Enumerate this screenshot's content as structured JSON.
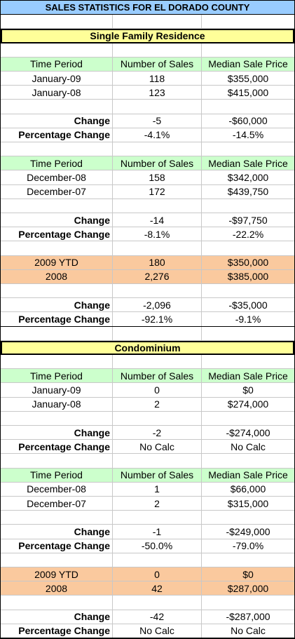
{
  "title": "SALES STATISTICS FOR EL DORADO COUNTY",
  "sections": [
    {
      "name": "Single Family Residence",
      "blocks": [
        {
          "header": [
            "Time Period",
            "Number of Sales",
            "Median Sale Price"
          ],
          "rows": [
            [
              "January-09",
              "118",
              "$355,000"
            ],
            [
              "January-08",
              "123",
              "$415,000"
            ]
          ],
          "change": [
            "Change",
            "-5",
            "-$60,000"
          ],
          "percentage_change": [
            "Percentage Change",
            "-4.1%",
            "-14.5%"
          ]
        },
        {
          "header": [
            "Time Period",
            "Number of Sales",
            "Median Sale Price"
          ],
          "rows": [
            [
              "December-08",
              "158",
              "$342,000"
            ],
            [
              "December-07",
              "172",
              "$439,750"
            ]
          ],
          "change": [
            "Change",
            "-14",
            "-$97,750"
          ],
          "percentage_change": [
            "Percentage Change",
            "-8.1%",
            "-22.2%"
          ]
        },
        {
          "rows": [
            [
              "2009 YTD",
              "180",
              "$350,000"
            ],
            [
              "2008",
              "2,276",
              "$385,000"
            ]
          ],
          "change": [
            "Change",
            "-2,096",
            "-$35,000"
          ],
          "percentage_change": [
            "Percentage Change",
            "-92.1%",
            "-9.1%"
          ]
        }
      ]
    },
    {
      "name": "Condominium",
      "blocks": [
        {
          "header": [
            "Time Period",
            "Number of Sales",
            "Median Sale Price"
          ],
          "rows": [
            [
              "January-09",
              "0",
              "$0"
            ],
            [
              "January-08",
              "2",
              "$274,000"
            ]
          ],
          "change": [
            "Change",
            "-2",
            "-$274,000"
          ],
          "percentage_change": [
            "Percentage Change",
            "No Calc",
            "No Calc"
          ]
        },
        {
          "header": [
            "Time Period",
            "Number of Sales",
            "Median Sale Price"
          ],
          "rows": [
            [
              "December-08",
              "1",
              "$66,000"
            ],
            [
              "December-07",
              "2",
              "$315,000"
            ]
          ],
          "change": [
            "Change",
            "-1",
            "-$249,000"
          ],
          "percentage_change": [
            "Percentage Change",
            "-50.0%",
            "-79.0%"
          ]
        },
        {
          "rows": [
            [
              "2009 YTD",
              "0",
              "$0"
            ],
            [
              "2008",
              "42",
              "$287,000"
            ]
          ],
          "change": [
            "Change",
            "-42",
            "-$287,000"
          ],
          "percentage_change": [
            "Percentage Change",
            "No Calc",
            "No Calc"
          ]
        }
      ]
    }
  ]
}
